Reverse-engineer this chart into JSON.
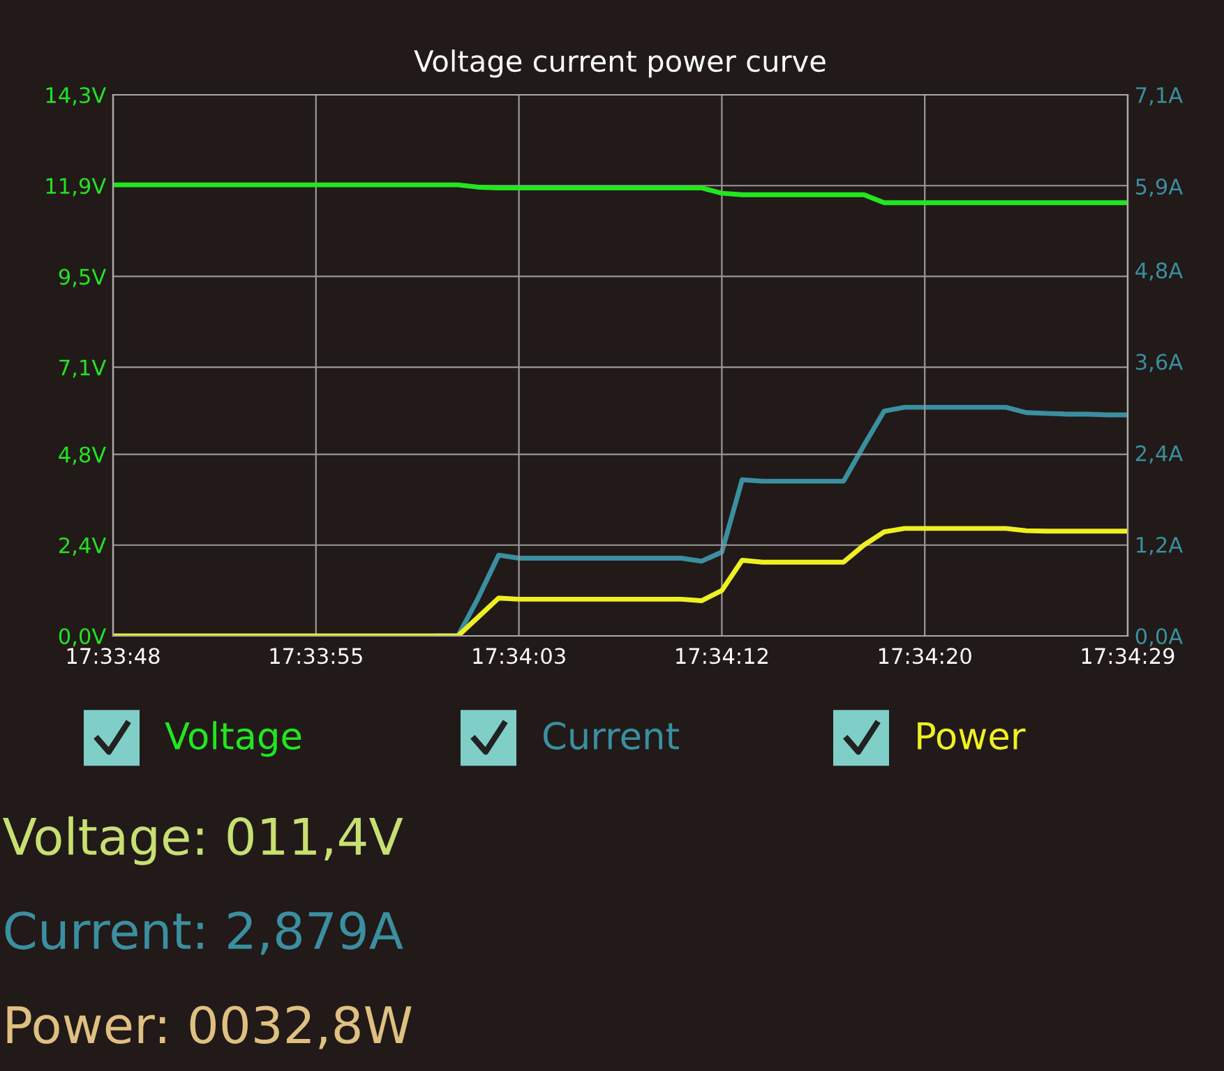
{
  "chart_data": {
    "type": "line",
    "title": "Voltage current power curve",
    "categories": [
      "17:33:48",
      null,
      null,
      null,
      null,
      null,
      null,
      null,
      null,
      null,
      "17:33:55",
      null,
      null,
      null,
      null,
      null,
      null,
      null,
      null,
      null,
      "17:34:03",
      null,
      null,
      null,
      null,
      null,
      null,
      null,
      null,
      null,
      "17:34:12",
      null,
      null,
      null,
      null,
      null,
      null,
      null,
      null,
      null,
      "17:34:20",
      null,
      null,
      null,
      null,
      null,
      null,
      null,
      null,
      null,
      "17:34:29"
    ],
    "ylim": [
      0,
      14.3
    ],
    "yticks": [
      {
        "value": 0,
        "label": "0,0V"
      },
      {
        "value": 2.4,
        "label": "2,4V"
      },
      {
        "value": 4.8,
        "label": "4,8V"
      },
      {
        "value": 7.1,
        "label": "7,1V"
      },
      {
        "value": 9.5,
        "label": "9,5V"
      },
      {
        "value": 11.9,
        "label": "11,9V"
      },
      {
        "value": 14.3,
        "label": "14,3V"
      }
    ],
    "y2lim": [
      0,
      7.1
    ],
    "y2ticks": [
      {
        "value": 0,
        "label": "0,0A"
      },
      {
        "value": 1.2,
        "label": "1,2A"
      },
      {
        "value": 2.4,
        "label": "2,4A"
      },
      {
        "value": 3.6,
        "label": "3,6A"
      },
      {
        "value": 4.8,
        "label": "4,8A"
      },
      {
        "value": 5.9,
        "label": "5,9A"
      },
      {
        "value": 7.1,
        "label": "7,1A"
      }
    ],
    "grid": true,
    "legend": "bottom",
    "marker": "none",
    "line_style": "solid",
    "series": [
      {
        "name": "Voltage",
        "color": "#22e61e",
        "values": [
          11.92,
          11.92,
          11.92,
          11.92,
          11.92,
          11.92,
          11.92,
          11.92,
          11.92,
          11.92,
          11.92,
          11.92,
          11.92,
          11.92,
          11.92,
          11.92,
          11.92,
          11.92,
          11.86,
          11.84,
          11.84,
          11.84,
          11.84,
          11.84,
          11.84,
          11.84,
          11.84,
          11.84,
          11.84,
          11.84,
          11.7,
          11.66,
          11.66,
          11.66,
          11.66,
          11.66,
          11.66,
          11.66,
          11.45,
          11.45,
          11.45,
          11.45,
          11.45,
          11.45,
          11.45,
          11.45,
          11.45,
          11.45,
          11.45,
          11.45,
          11.45
        ]
      },
      {
        "name": "Current",
        "color": "#3a8fa0",
        "axis": "y2",
        "values": [
          null,
          null,
          null,
          null,
          null,
          null,
          null,
          null,
          null,
          null,
          null,
          null,
          null,
          null,
          null,
          null,
          0,
          0,
          0.5,
          1.06,
          1.02,
          1.02,
          1.02,
          1.02,
          1.02,
          1.02,
          1.02,
          1.02,
          1.02,
          0.98,
          1.1,
          2.05,
          2.03,
          2.03,
          2.03,
          2.03,
          2.03,
          2.5,
          2.95,
          3.0,
          3.0,
          3.0,
          3.0,
          3.0,
          3.0,
          2.93,
          2.92,
          2.91,
          2.91,
          2.9,
          2.9
        ]
      },
      {
        "name": "Power",
        "color": "#f0f020",
        "values": [
          0,
          0,
          0,
          0,
          0,
          0,
          0,
          0,
          0,
          0,
          0,
          0,
          0,
          0,
          0,
          0,
          0,
          0,
          0.5,
          1.0,
          0.97,
          0.97,
          0.97,
          0.97,
          0.97,
          0.97,
          0.97,
          0.97,
          0.97,
          0.93,
          1.2,
          2.0,
          1.95,
          1.95,
          1.95,
          1.95,
          1.95,
          2.4,
          2.75,
          2.84,
          2.84,
          2.84,
          2.84,
          2.84,
          2.84,
          2.78,
          2.77,
          2.77,
          2.77,
          2.77,
          2.77
        ]
      }
    ],
    "annotations": [
      "Voltage: 011,4V",
      "Current: 2,879A",
      "Power: 0032,8W"
    ]
  }
}
